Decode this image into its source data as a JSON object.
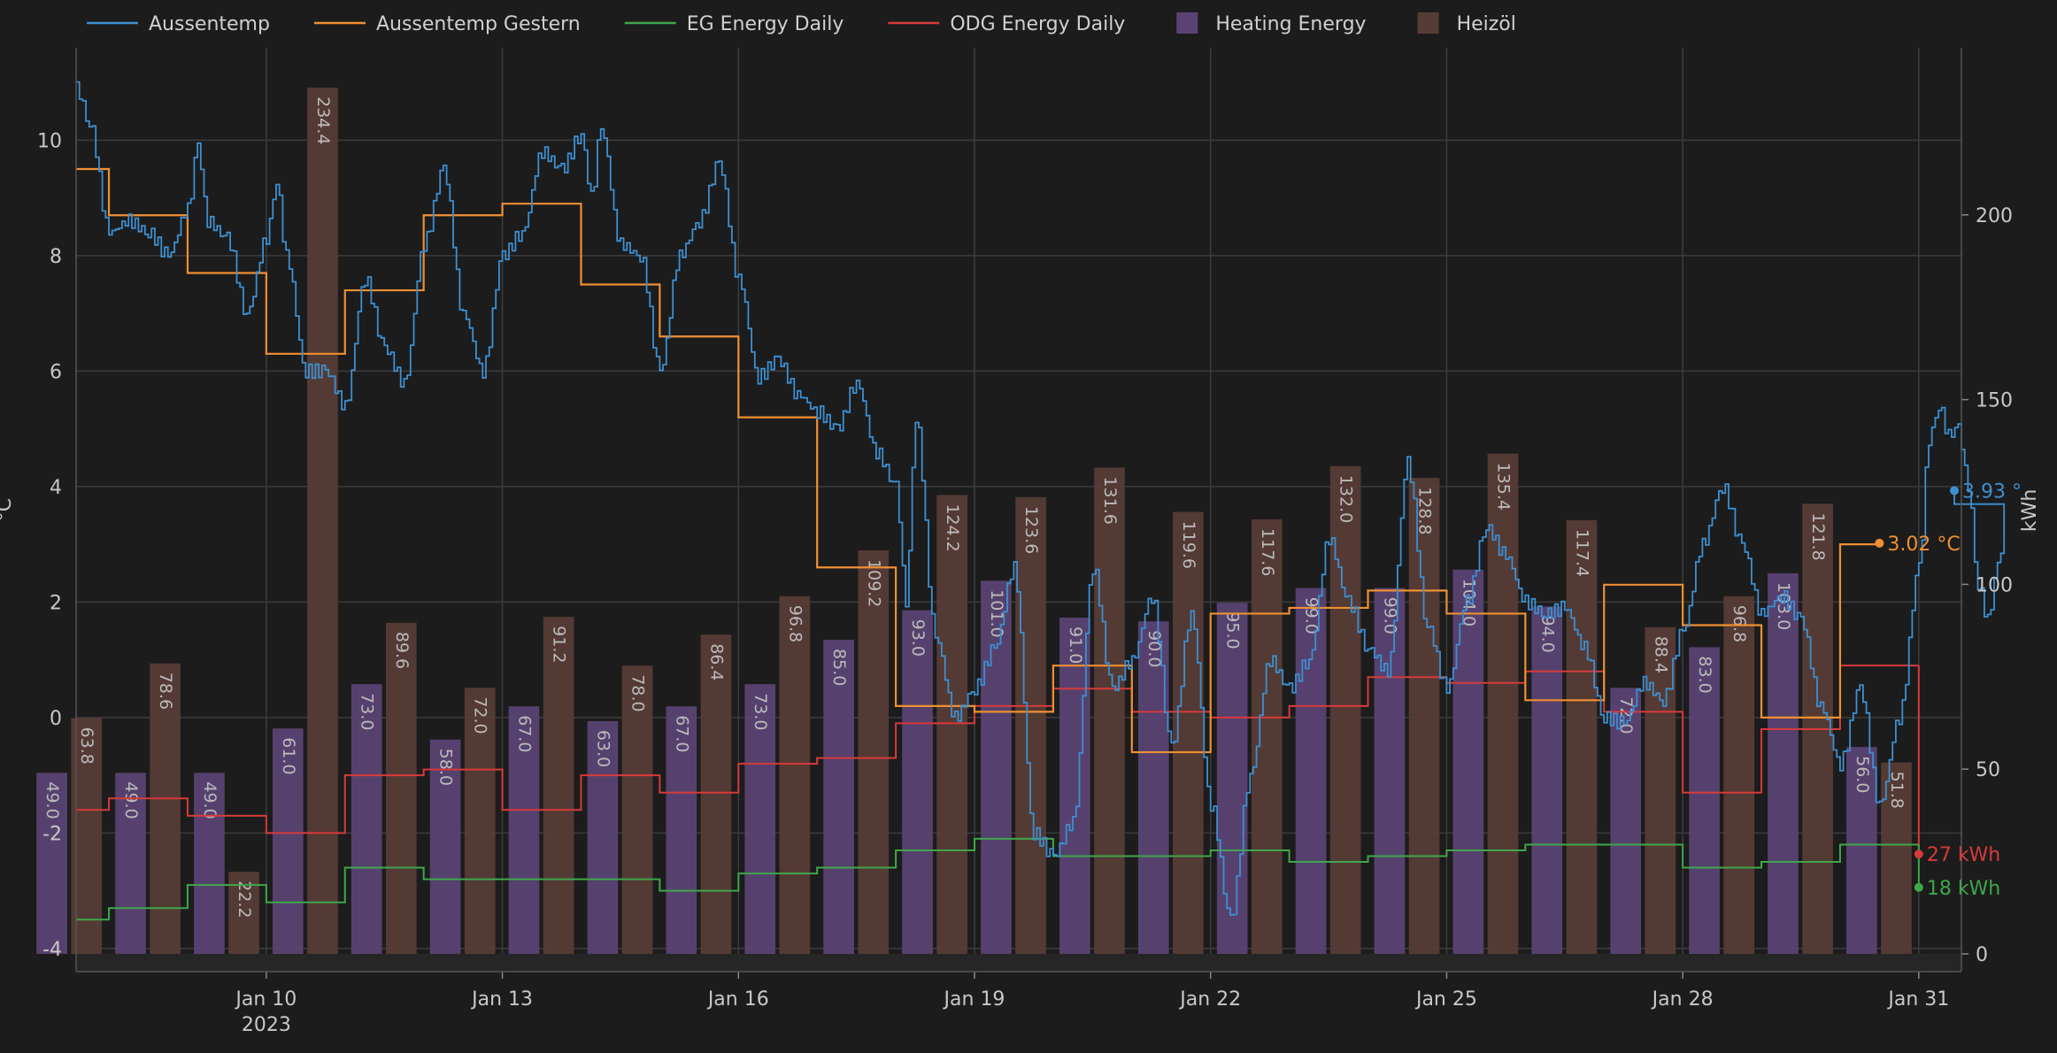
{
  "chart_data": {
    "type": "line",
    "title": "",
    "xlabel": "",
    "x_year_label": "2023",
    "x_ticks": [
      {
        "date": "2023-01-10",
        "label": "Jan 10"
      },
      {
        "date": "2023-01-13",
        "label": "Jan 13"
      },
      {
        "date": "2023-01-16",
        "label": "Jan 16"
      },
      {
        "date": "2023-01-19",
        "label": "Jan 19"
      },
      {
        "date": "2023-01-22",
        "label": "Jan 22"
      },
      {
        "date": "2023-01-25",
        "label": "Jan 25"
      },
      {
        "date": "2023-01-28",
        "label": "Jan 28"
      },
      {
        "date": "2023-01-31",
        "label": "Jan 31"
      }
    ],
    "x_range": [
      "2023-01-07T14:00",
      "2023-01-31T13:00"
    ],
    "y_left": {
      "label": "°C",
      "range": [
        -4.4,
        11.6
      ],
      "ticks": [
        -4,
        -2,
        0,
        2,
        4,
        6,
        8,
        10
      ]
    },
    "y_right": {
      "label": "kWh",
      "range": [
        0,
        250
      ],
      "ticks": [
        0,
        50,
        100,
        150,
        200
      ]
    },
    "grid": true,
    "legend_position": "top",
    "colors": {
      "aussentemp": "#3d8fd1",
      "aussentemp_gestern": "#ef8f32",
      "eg_energy": "#3fa64a",
      "odg_energy": "#d63a3a",
      "heating_energy": "#5a4373",
      "heizoel": "#573c36"
    },
    "legend": [
      {
        "key": "aussentemp",
        "label": "Aussentemp",
        "kind": "line"
      },
      {
        "key": "aussentemp_gestern",
        "label": "Aussentemp Gestern",
        "kind": "line"
      },
      {
        "key": "eg_energy",
        "label": "EG Energy Daily",
        "kind": "line"
      },
      {
        "key": "odg_energy",
        "label": "ODG Energy Daily",
        "kind": "line"
      },
      {
        "key": "heating_energy",
        "label": "Heating Energy",
        "kind": "bar"
      },
      {
        "key": "heizoel",
        "label": "Heizöl",
        "kind": "bar"
      }
    ],
    "bar_days": [
      "2023-01-07",
      "2023-01-08",
      "2023-01-09",
      "2023-01-10",
      "2023-01-11",
      "2023-01-12",
      "2023-01-13",
      "2023-01-14",
      "2023-01-15",
      "2023-01-16",
      "2023-01-17",
      "2023-01-18",
      "2023-01-19",
      "2023-01-20",
      "2023-01-21",
      "2023-01-22",
      "2023-01-23",
      "2023-01-24",
      "2023-01-25",
      "2023-01-26",
      "2023-01-27",
      "2023-01-28",
      "2023-01-29",
      "2023-01-30",
      "2023-01-31"
    ],
    "heating_energy": [
      49.0,
      49.0,
      49.0,
      61.0,
      73.0,
      58.0,
      67.0,
      63.0,
      67.0,
      73.0,
      85.0,
      93.0,
      101.0,
      91.0,
      90.0,
      95.0,
      99.0,
      99.0,
      104.0,
      94.0,
      72.0,
      83.0,
      103.0,
      56.0,
      0
    ],
    "heating_energy_labels": [
      "49.0",
      "49.0",
      "49.0",
      "61.0",
      "73.0",
      "58.0",
      "67.0",
      "63.0",
      "67.0",
      "73.0",
      "85.0",
      "93.0",
      "101.0",
      "91.0",
      "90.0",
      "95.0",
      "99.0",
      "99.0",
      "104.0",
      "94.0",
      "72.0",
      "83.0",
      "103.0",
      "56.0",
      ""
    ],
    "heizoel": [
      63.8,
      78.6,
      22.2,
      234.4,
      89.6,
      72.0,
      91.2,
      78.0,
      86.4,
      96.8,
      109.2,
      124.2,
      123.6,
      131.6,
      119.6,
      117.6,
      132.0,
      128.8,
      135.4,
      117.4,
      88.4,
      96.8,
      121.8,
      51.8,
      0
    ],
    "heizoel_labels": [
      "63.8",
      "78.6",
      "22.2",
      "234.4",
      "89.6",
      "72.0",
      "91.2",
      "78.0",
      "86.4",
      "96.8",
      "109.2",
      "124.2",
      "123.6",
      "131.6",
      "119.6",
      "117.6",
      "132.0",
      "128.8",
      "135.4",
      "117.4",
      "88.4",
      "96.8",
      "121.8",
      "51.8",
      ""
    ],
    "aussentemp_gestern": [
      [
        "2023-01-07T14:00",
        9.5
      ],
      [
        "2023-01-08T00:00",
        8.7
      ],
      [
        "2023-01-09T00:00",
        7.7
      ],
      [
        "2023-01-10T00:00",
        6.3
      ],
      [
        "2023-01-11T00:00",
        7.4
      ],
      [
        "2023-01-12T00:00",
        8.7
      ],
      [
        "2023-01-13T00:00",
        8.9
      ],
      [
        "2023-01-14T00:00",
        7.5
      ],
      [
        "2023-01-15T00:00",
        6.6
      ],
      [
        "2023-01-16T00:00",
        5.2
      ],
      [
        "2023-01-17T00:00",
        2.6
      ],
      [
        "2023-01-18T00:00",
        0.2
      ],
      [
        "2023-01-19T00:00",
        0.1
      ],
      [
        "2023-01-20T00:00",
        0.9
      ],
      [
        "2023-01-21T00:00",
        -0.6
      ],
      [
        "2023-01-22T00:00",
        1.8
      ],
      [
        "2023-01-23T00:00",
        1.9
      ],
      [
        "2023-01-24T00:00",
        2.2
      ],
      [
        "2023-01-25T00:00",
        1.8
      ],
      [
        "2023-01-26T00:00",
        0.3
      ],
      [
        "2023-01-27T00:00",
        2.3
      ],
      [
        "2023-01-28T00:00",
        1.6
      ],
      [
        "2023-01-29T00:00",
        0.0
      ],
      [
        "2023-01-30T00:00",
        3.0
      ],
      [
        "2023-01-30T12:00",
        3.02
      ]
    ],
    "aussentemp": [
      [
        "2023-01-07T14:00",
        10.9
      ],
      [
        "2023-01-07T18:00",
        10.3
      ],
      [
        "2023-01-08T00:00",
        8.4
      ],
      [
        "2023-01-08T06:00",
        8.6
      ],
      [
        "2023-01-08T12:00",
        8.4
      ],
      [
        "2023-01-08T18:00",
        8.0
      ],
      [
        "2023-01-09T00:00",
        8.8
      ],
      [
        "2023-01-09T03:00",
        9.9
      ],
      [
        "2023-01-09T06:00",
        8.6
      ],
      [
        "2023-01-09T12:00",
        8.3
      ],
      [
        "2023-01-09T18:00",
        7.0
      ],
      [
        "2023-01-10T00:00",
        8.3
      ],
      [
        "2023-01-10T03:00",
        9.3
      ],
      [
        "2023-01-10T06:00",
        8.0
      ],
      [
        "2023-01-10T12:00",
        6.0
      ],
      [
        "2023-01-10T18:00",
        6.0
      ],
      [
        "2023-01-11T00:00",
        5.4
      ],
      [
        "2023-01-11T06:00",
        7.6
      ],
      [
        "2023-01-11T12:00",
        6.4
      ],
      [
        "2023-01-11T18:00",
        5.8
      ],
      [
        "2023-01-12T00:00",
        8.2
      ],
      [
        "2023-01-12T06:00",
        9.5
      ],
      [
        "2023-01-12T12:00",
        7.0
      ],
      [
        "2023-01-12T18:00",
        6.0
      ],
      [
        "2023-01-13T00:00",
        8.0
      ],
      [
        "2023-01-13T06:00",
        8.4
      ],
      [
        "2023-01-13T12:00",
        9.8
      ],
      [
        "2023-01-13T18:00",
        9.5
      ],
      [
        "2023-01-14T00:00",
        10.1
      ],
      [
        "2023-01-14T03:00",
        9.0
      ],
      [
        "2023-01-14T06:00",
        10.2
      ],
      [
        "2023-01-14T12:00",
        8.2
      ],
      [
        "2023-01-14T18:00",
        8.0
      ],
      [
        "2023-01-15T00:00",
        6.0
      ],
      [
        "2023-01-15T06:00",
        8.0
      ],
      [
        "2023-01-15T12:00",
        8.6
      ],
      [
        "2023-01-15T18:00",
        9.6
      ],
      [
        "2023-01-16T00:00",
        7.6
      ],
      [
        "2023-01-16T06:00",
        5.9
      ],
      [
        "2023-01-16T12:00",
        6.2
      ],
      [
        "2023-01-16T18:00",
        5.6
      ],
      [
        "2023-01-17T00:00",
        5.3
      ],
      [
        "2023-01-17T06:00",
        5.0
      ],
      [
        "2023-01-17T12:00",
        5.8
      ],
      [
        "2023-01-17T18:00",
        4.6
      ],
      [
        "2023-01-18T00:00",
        4.0
      ],
      [
        "2023-01-18T03:00",
        2.0
      ],
      [
        "2023-01-18T06:00",
        5.2
      ],
      [
        "2023-01-18T12:00",
        1.4
      ],
      [
        "2023-01-18T18:00",
        0.0
      ],
      [
        "2023-01-19T00:00",
        0.5
      ],
      [
        "2023-01-19T06:00",
        1.2
      ],
      [
        "2023-01-19T12:00",
        2.6
      ],
      [
        "2023-01-19T18:00",
        -2.0
      ],
      [
        "2023-01-20T00:00",
        -2.4
      ],
      [
        "2023-01-20T06:00",
        -1.8
      ],
      [
        "2023-01-20T12:00",
        2.6
      ],
      [
        "2023-01-20T18:00",
        0.5
      ],
      [
        "2023-01-21T00:00",
        1.0
      ],
      [
        "2023-01-21T06:00",
        2.1
      ],
      [
        "2023-01-21T12:00",
        -0.5
      ],
      [
        "2023-01-21T18:00",
        1.8
      ],
      [
        "2023-01-22T00:00",
        -1.5
      ],
      [
        "2023-01-22T06:00",
        -3.5
      ],
      [
        "2023-01-22T12:00",
        -1.0
      ],
      [
        "2023-01-22T18:00",
        1.0
      ],
      [
        "2023-01-23T00:00",
        0.5
      ],
      [
        "2023-01-23T06:00",
        1.0
      ],
      [
        "2023-01-23T12:00",
        3.1
      ],
      [
        "2023-01-23T18:00",
        2.0
      ],
      [
        "2023-01-24T00:00",
        1.2
      ],
      [
        "2023-01-24T06:00",
        0.8
      ],
      [
        "2023-01-24T12:00",
        4.4
      ],
      [
        "2023-01-24T18:00",
        1.6
      ],
      [
        "2023-01-25T00:00",
        0.5
      ],
      [
        "2023-01-25T06:00",
        2.0
      ],
      [
        "2023-01-25T12:00",
        3.3
      ],
      [
        "2023-01-25T18:00",
        2.8
      ],
      [
        "2023-01-26T00:00",
        2.0
      ],
      [
        "2023-01-26T06:00",
        1.8
      ],
      [
        "2023-01-26T12:00",
        1.9
      ],
      [
        "2023-01-26T18:00",
        1.2
      ],
      [
        "2023-01-27T00:00",
        0.0
      ],
      [
        "2023-01-27T06:00",
        -0.1
      ],
      [
        "2023-01-27T12:00",
        0.6
      ],
      [
        "2023-01-27T18:00",
        0.3
      ],
      [
        "2023-01-28T00:00",
        1.5
      ],
      [
        "2023-01-28T06:00",
        3.0
      ],
      [
        "2023-01-28T12:00",
        4.0
      ],
      [
        "2023-01-28T18:00",
        3.0
      ],
      [
        "2023-01-29T00:00",
        1.8
      ],
      [
        "2023-01-29T06:00",
        2.1
      ],
      [
        "2023-01-29T12:00",
        1.7
      ],
      [
        "2023-01-29T18:00",
        0.2
      ],
      [
        "2023-01-30T00:00",
        -0.8
      ],
      [
        "2023-01-30T06:00",
        0.5
      ],
      [
        "2023-01-30T12:00",
        -1.5
      ],
      [
        "2023-01-30T18:00",
        0.0
      ],
      [
        "2023-01-31T00:00",
        2.6
      ],
      [
        "2023-01-31T03:00",
        4.8
      ],
      [
        "2023-01-31T06:00",
        5.4
      ],
      [
        "2023-01-31T09:00",
        4.9
      ],
      [
        "2023-01-31T12:00",
        5.0
      ],
      [
        "2023-01-31T15:00",
        4.0
      ],
      [
        "2023-01-31T18:00",
        2.3
      ],
      [
        "2023-01-31T21:00",
        1.7
      ],
      [
        "2023-02-01T00:00",
        2.6
      ],
      [
        "2023-02-01T03:00",
        3.93
      ]
    ],
    "eg_energy": [
      [
        "2023-01-07T14:00",
        -3.5
      ],
      [
        "2023-01-08T00:00",
        -3.3
      ],
      [
        "2023-01-09T00:00",
        -2.9
      ],
      [
        "2023-01-10T00:00",
        -3.2
      ],
      [
        "2023-01-11T00:00",
        -2.6
      ],
      [
        "2023-01-12T00:00",
        -2.8
      ],
      [
        "2023-01-13T00:00",
        -2.8
      ],
      [
        "2023-01-14T00:00",
        -2.8
      ],
      [
        "2023-01-15T00:00",
        -3.0
      ],
      [
        "2023-01-16T00:00",
        -2.7
      ],
      [
        "2023-01-17T00:00",
        -2.6
      ],
      [
        "2023-01-18T00:00",
        -2.3
      ],
      [
        "2023-01-19T00:00",
        -2.1
      ],
      [
        "2023-01-20T00:00",
        -2.4
      ],
      [
        "2023-01-21T00:00",
        -2.4
      ],
      [
        "2023-01-22T00:00",
        -2.3
      ],
      [
        "2023-01-23T00:00",
        -2.5
      ],
      [
        "2023-01-24T00:00",
        -2.4
      ],
      [
        "2023-01-25T00:00",
        -2.3
      ],
      [
        "2023-01-26T00:00",
        -2.2
      ],
      [
        "2023-01-27T00:00",
        -2.2
      ],
      [
        "2023-01-28T00:00",
        -2.6
      ],
      [
        "2023-01-29T00:00",
        -2.5
      ],
      [
        "2023-01-30T00:00",
        -2.2
      ],
      [
        "2023-01-31T00:00",
        -2.2
      ]
    ],
    "odg_energy": [
      [
        "2023-01-07T14:00",
        -1.6
      ],
      [
        "2023-01-08T00:00",
        -1.4
      ],
      [
        "2023-01-09T00:00",
        -1.7
      ],
      [
        "2023-01-10T00:00",
        -2.0
      ],
      [
        "2023-01-11T00:00",
        -1.0
      ],
      [
        "2023-01-12T00:00",
        -0.9
      ],
      [
        "2023-01-13T00:00",
        -1.6
      ],
      [
        "2023-01-14T00:00",
        -1.0
      ],
      [
        "2023-01-15T00:00",
        -1.3
      ],
      [
        "2023-01-16T00:00",
        -0.8
      ],
      [
        "2023-01-17T00:00",
        -0.7
      ],
      [
        "2023-01-18T00:00",
        -0.1
      ],
      [
        "2023-01-19T00:00",
        0.2
      ],
      [
        "2023-01-20T00:00",
        0.5
      ],
      [
        "2023-01-21T00:00",
        0.1
      ],
      [
        "2023-01-22T00:00",
        0.0
      ],
      [
        "2023-01-23T00:00",
        0.2
      ],
      [
        "2023-01-24T00:00",
        0.7
      ],
      [
        "2023-01-25T00:00",
        0.6
      ],
      [
        "2023-01-26T00:00",
        0.8
      ],
      [
        "2023-01-27T00:00",
        0.1
      ],
      [
        "2023-01-28T00:00",
        -1.3
      ],
      [
        "2023-01-29T00:00",
        -0.2
      ],
      [
        "2023-01-30T00:00",
        0.9
      ],
      [
        "2023-01-31T00:00",
        0.9
      ]
    ],
    "end_labels": {
      "aussentemp": "3.93 °",
      "aussentemp_gestern": "3.02 °C",
      "odg_energy": "27 kWh",
      "eg_energy": "18 kWh"
    },
    "end_values_kwh": {
      "odg_energy": 27,
      "eg_energy": 18
    }
  }
}
